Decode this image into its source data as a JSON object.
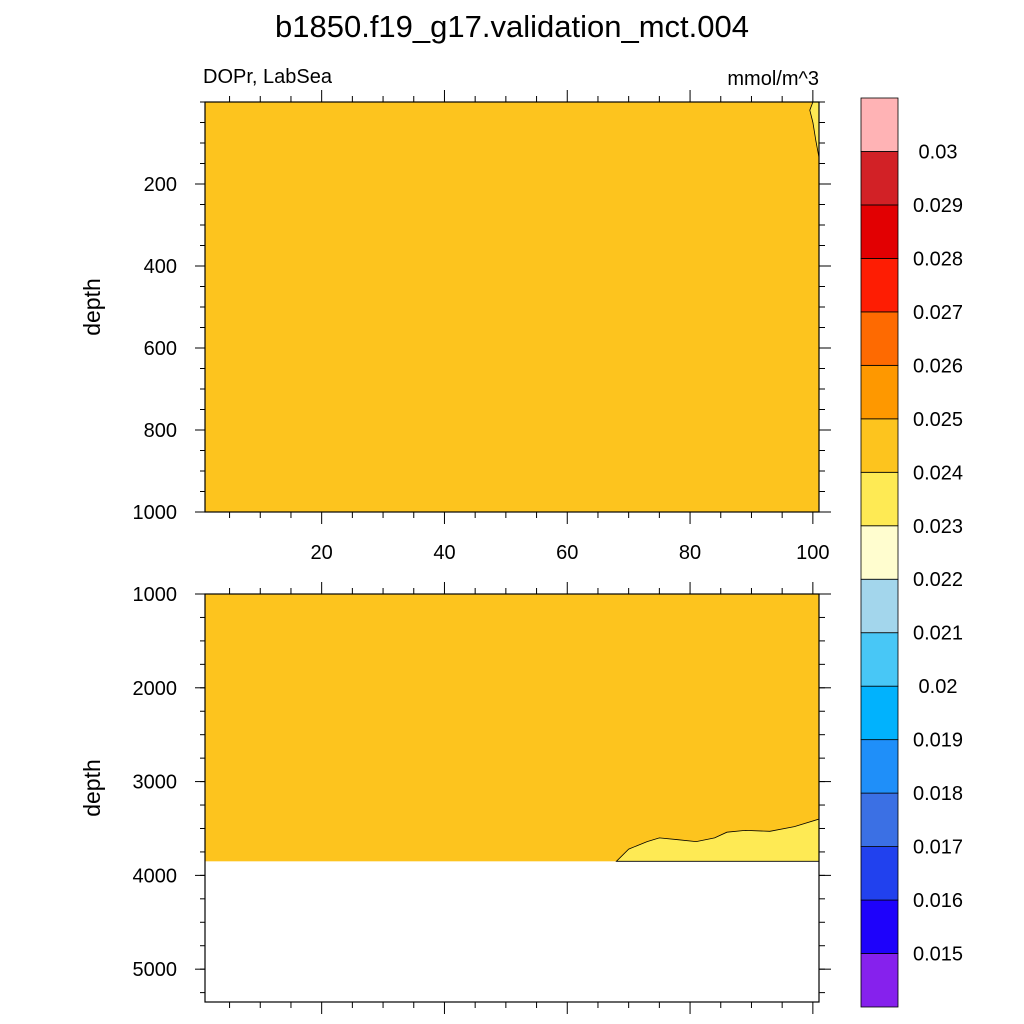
{
  "title": "b1850.f19_g17.validation_mct.004",
  "left_label": "DOPr, LabSea",
  "right_label": "mmol/m^3",
  "colors": {
    "fill_main": "#fdc41e",
    "fill_low": "#feea54",
    "colorbar": [
      "#8621ed",
      "#1e02fb",
      "#2141ee",
      "#3b70e4",
      "#1f8ff9",
      "#01b2fd",
      "#48c7f6",
      "#a3d6ec",
      "#fffdcf",
      "#feea54",
      "#fdc41e",
      "#fe9800",
      "#fe6a01",
      "#fe1d03",
      "#e20002",
      "#d22126",
      "#ffb3b5"
    ]
  },
  "chart_data": [
    {
      "type": "heatmap",
      "name": "upper-panel",
      "ylabel": "depth",
      "xlim": [
        1,
        101
      ],
      "ylim": [
        1000,
        0
      ],
      "xticks": [
        20,
        40,
        60,
        80,
        100
      ],
      "yticks": [
        200,
        400,
        600,
        800,
        1000
      ],
      "dominant_value_range": [
        0.024,
        0.025
      ],
      "contour_low_region": {
        "range": [
          0.023,
          0.024
        ],
        "boundary": [
          [
            100,
            0
          ],
          [
            99.5,
            20
          ],
          [
            100,
            50
          ],
          [
            100.5,
            95
          ],
          [
            101,
            135
          ],
          [
            101,
            0
          ]
        ]
      }
    },
    {
      "type": "heatmap",
      "name": "lower-panel",
      "ylabel": "depth",
      "xlim": [
        1,
        101
      ],
      "ylim": [
        5350,
        1000
      ],
      "yticks": [
        1000,
        2000,
        3000,
        4000,
        5000
      ],
      "bottom_depth": 3850,
      "dominant_value_range": [
        0.024,
        0.025
      ],
      "contour_low_region": {
        "range": [
          0.023,
          0.024
        ],
        "boundary": [
          [
            68,
            3850
          ],
          [
            70,
            3720
          ],
          [
            73,
            3640
          ],
          [
            75,
            3600
          ],
          [
            78,
            3620
          ],
          [
            81,
            3640
          ],
          [
            84,
            3600
          ],
          [
            86,
            3540
          ],
          [
            89,
            3520
          ],
          [
            93,
            3530
          ],
          [
            97,
            3480
          ],
          [
            101,
            3400
          ]
        ]
      }
    }
  ],
  "colorbar": {
    "labels": [
      "0.015",
      "0.016",
      "0.017",
      "0.018",
      "0.019",
      "0.02",
      "0.021",
      "0.022",
      "0.023",
      "0.024",
      "0.025",
      "0.026",
      "0.027",
      "0.028",
      "0.029",
      "0.03"
    ]
  }
}
